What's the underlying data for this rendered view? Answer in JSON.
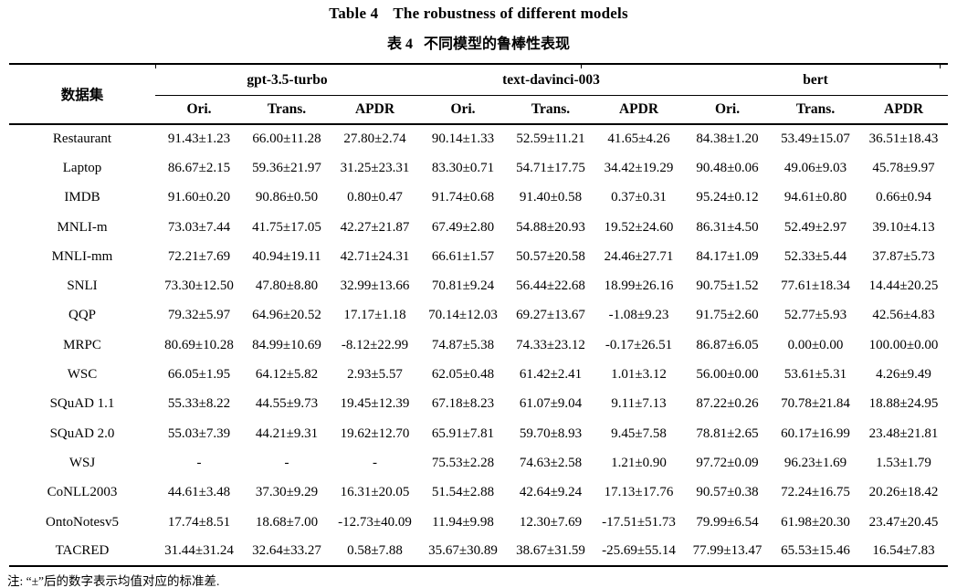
{
  "caption": {
    "en_label": "Table 4",
    "en_text": "The robustness of different models",
    "zh_label": "表 4",
    "zh_text": "不同模型的鲁棒性表现"
  },
  "table": {
    "dataset_header": "数据集",
    "groups": [
      {
        "label": "gpt-3.5-turbo",
        "subcols": [
          "Ori.",
          "Trans.",
          "APDR"
        ]
      },
      {
        "label": "text-davinci-003",
        "subcols": [
          "Ori.",
          "Trans.",
          "APDR"
        ]
      },
      {
        "label": "bert",
        "subcols": [
          "Ori.",
          "Trans.",
          "APDR"
        ]
      }
    ],
    "rows": [
      {
        "dataset": "Restaurant",
        "values": [
          "91.43±1.23",
          "66.00±11.28",
          "27.80±2.74",
          "90.14±1.33",
          "52.59±11.21",
          "41.65±4.26",
          "84.38±1.20",
          "53.49±15.07",
          "36.51±18.43"
        ]
      },
      {
        "dataset": "Laptop",
        "values": [
          "86.67±2.15",
          "59.36±21.97",
          "31.25±23.31",
          "83.30±0.71",
          "54.71±17.75",
          "34.42±19.29",
          "90.48±0.06",
          "49.06±9.03",
          "45.78±9.97"
        ]
      },
      {
        "dataset": "IMDB",
        "values": [
          "91.60±0.20",
          "90.86±0.50",
          "0.80±0.47",
          "91.74±0.68",
          "91.40±0.58",
          "0.37±0.31",
          "95.24±0.12",
          "94.61±0.80",
          "0.66±0.94"
        ]
      },
      {
        "dataset": "MNLI-m",
        "values": [
          "73.03±7.44",
          "41.75±17.05",
          "42.27±21.87",
          "67.49±2.80",
          "54.88±20.93",
          "19.52±24.60",
          "86.31±4.50",
          "52.49±2.97",
          "39.10±4.13"
        ]
      },
      {
        "dataset": "MNLI-mm",
        "values": [
          "72.21±7.69",
          "40.94±19.11",
          "42.71±24.31",
          "66.61±1.57",
          "50.57±20.58",
          "24.46±27.71",
          "84.17±1.09",
          "52.33±5.44",
          "37.87±5.73"
        ]
      },
      {
        "dataset": "SNLI",
        "values": [
          "73.30±12.50",
          "47.80±8.80",
          "32.99±13.66",
          "70.81±9.24",
          "56.44±22.68",
          "18.99±26.16",
          "90.75±1.52",
          "77.61±18.34",
          "14.44±20.25"
        ]
      },
      {
        "dataset": "QQP",
        "values": [
          "79.32±5.97",
          "64.96±20.52",
          "17.17±1.18",
          "70.14±12.03",
          "69.27±13.67",
          "-1.08±9.23",
          "91.75±2.60",
          "52.77±5.93",
          "42.56±4.83"
        ]
      },
      {
        "dataset": "MRPC",
        "values": [
          "80.69±10.28",
          "84.99±10.69",
          "-8.12±22.99",
          "74.87±5.38",
          "74.33±23.12",
          "-0.17±26.51",
          "86.87±6.05",
          "0.00±0.00",
          "100.00±0.00"
        ]
      },
      {
        "dataset": "WSC",
        "values": [
          "66.05±1.95",
          "64.12±5.82",
          "2.93±5.57",
          "62.05±0.48",
          "61.42±2.41",
          "1.01±3.12",
          "56.00±0.00",
          "53.61±5.31",
          "4.26±9.49"
        ]
      },
      {
        "dataset": "SQuAD 1.1",
        "values": [
          "55.33±8.22",
          "44.55±9.73",
          "19.45±12.39",
          "67.18±8.23",
          "61.07±9.04",
          "9.11±7.13",
          "87.22±0.26",
          "70.78±21.84",
          "18.88±24.95"
        ]
      },
      {
        "dataset": "SQuAD 2.0",
        "values": [
          "55.03±7.39",
          "44.21±9.31",
          "19.62±12.70",
          "65.91±7.81",
          "59.70±8.93",
          "9.45±7.58",
          "78.81±2.65",
          "60.17±16.99",
          "23.48±21.81"
        ]
      },
      {
        "dataset": "WSJ",
        "values": [
          "-",
          "-",
          "-",
          "75.53±2.28",
          "74.63±2.58",
          "1.21±0.90",
          "97.72±0.09",
          "96.23±1.69",
          "1.53±1.79"
        ]
      },
      {
        "dataset": "CoNLL2003",
        "values": [
          "44.61±3.48",
          "37.30±9.29",
          "16.31±20.05",
          "51.54±2.88",
          "42.64±9.24",
          "17.13±17.76",
          "90.57±0.38",
          "72.24±16.75",
          "20.26±18.42"
        ]
      },
      {
        "dataset": "OntoNotesv5",
        "values": [
          "17.74±8.51",
          "18.68±7.00",
          "-12.73±40.09",
          "11.94±9.98",
          "12.30±7.69",
          "-17.51±51.73",
          "79.99±6.54",
          "61.98±20.30",
          "23.47±20.45"
        ]
      },
      {
        "dataset": "TACRED",
        "values": [
          "31.44±31.24",
          "32.64±33.27",
          "0.58±7.88",
          "35.67±30.89",
          "38.67±31.59",
          "-25.69±55.14",
          "77.99±13.47",
          "65.53±15.46",
          "16.54±7.83"
        ]
      }
    ]
  },
  "footnote": "注: “±”后的数字表示均值对应的标准差."
}
